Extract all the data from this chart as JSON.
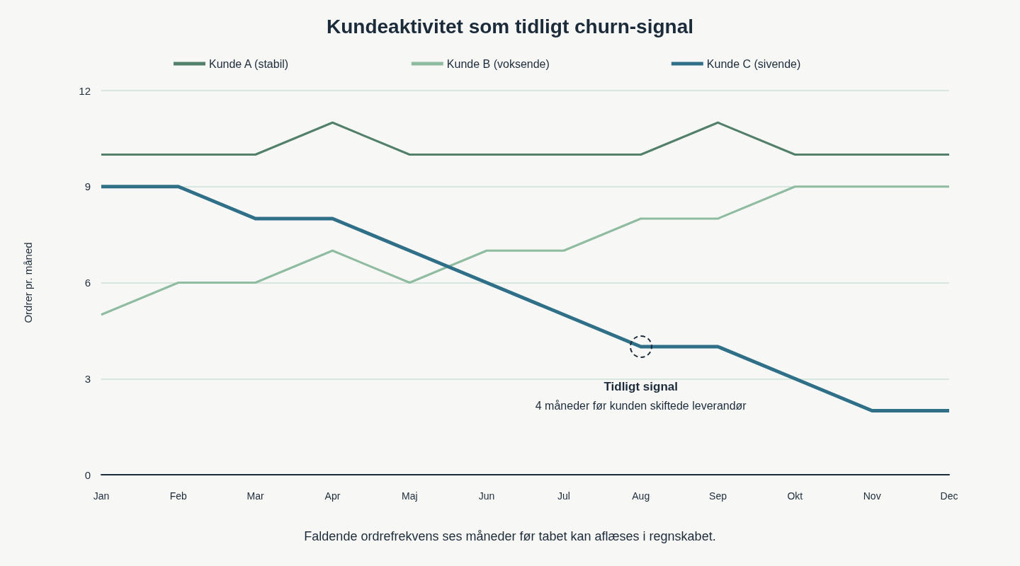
{
  "chart_data": {
    "type": "line",
    "title": "Kundeaktivitet som tidligt churn-signal",
    "ylabel": "Ordrer pr. måned",
    "categories": [
      "Jan",
      "Feb",
      "Mar",
      "Apr",
      "Maj",
      "Jun",
      "Jul",
      "Aug",
      "Sep",
      "Okt",
      "Nov",
      "Dec"
    ],
    "series": [
      {
        "name": "Kunde A (stabil)",
        "color": "#52806a",
        "values": [
          10,
          10,
          10,
          11,
          10,
          10,
          10,
          10,
          11,
          10,
          10,
          10
        ]
      },
      {
        "name": "Kunde B (voksende)",
        "color": "#8fbca0",
        "values": [
          5,
          6,
          6,
          7,
          6,
          7,
          7,
          8,
          8,
          9,
          9,
          9
        ]
      },
      {
        "name": "Kunde C (sivende)",
        "color": "#2f7088",
        "values": [
          9,
          9,
          8,
          8,
          7,
          6,
          5,
          4,
          4,
          3,
          2,
          2
        ]
      }
    ],
    "ylim": [
      0,
      12
    ],
    "yticks": [
      0,
      3,
      6,
      9,
      12
    ],
    "grid": "y",
    "legend": "top",
    "marker": "none",
    "line_style": "solid",
    "annotations": [
      {
        "text": "Tidligt signal",
        "x": "Aug",
        "y": 4
      },
      "4 måneder før kunden skiftede leverandør",
      "Faldende ordrefrekvens ses måneder før tabet kan aflæses i regnskabet."
    ]
  }
}
